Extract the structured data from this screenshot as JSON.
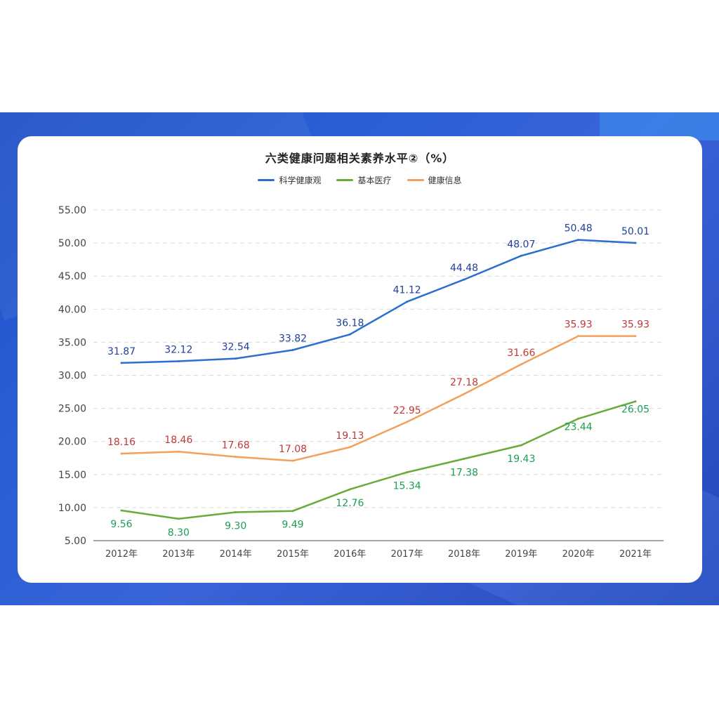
{
  "chart_data": {
    "type": "line",
    "title": "六类健康问题相关素养水平②（%）",
    "categories": [
      "2012年",
      "2013年",
      "2014年",
      "2015年",
      "2016年",
      "2017年",
      "2018年",
      "2019年",
      "2020年",
      "2021年"
    ],
    "ylim": [
      5,
      55
    ],
    "yticks": [
      "55.00",
      "50.00",
      "45.00",
      "40.00",
      "35.00",
      "30.00",
      "25.00",
      "20.00",
      "15.00",
      "10.00",
      "5.00"
    ],
    "grid": "horizontal-dashed",
    "legend_position": "top-center",
    "series": [
      {
        "name": "科学健康观",
        "color": "#2a6fd0",
        "label_color": "#1f3f9a",
        "values": [
          31.87,
          32.12,
          32.54,
          33.82,
          36.18,
          41.12,
          44.48,
          48.07,
          50.48,
          50.01
        ],
        "labels": [
          "31.87",
          "32.12",
          "32.54",
          "33.82",
          "36.18",
          "41.12",
          "44.48",
          "48.07",
          "50.48",
          "50.01"
        ]
      },
      {
        "name": "基本医疗",
        "color": "#6aaa3a",
        "label_color": "#1aa055",
        "values": [
          9.56,
          8.3,
          9.3,
          9.49,
          12.76,
          15.34,
          17.38,
          19.43,
          23.44,
          26.05
        ],
        "labels": [
          "9.56",
          "8.30",
          "9.30",
          "9.49",
          "12.76",
          "15.34",
          "17.38",
          "19.43",
          "23.44",
          "26.05"
        ]
      },
      {
        "name": "健康信息",
        "color": "#f2a05a",
        "label_color": "#c03a3a",
        "values": [
          18.16,
          18.46,
          17.68,
          17.08,
          19.13,
          22.95,
          27.18,
          31.66,
          35.93,
          35.93
        ],
        "labels": [
          "18.16",
          "18.46",
          "17.68",
          "17.08",
          "19.13",
          "22.95",
          "27.18",
          "31.66",
          "35.93",
          "35.93"
        ]
      }
    ]
  }
}
